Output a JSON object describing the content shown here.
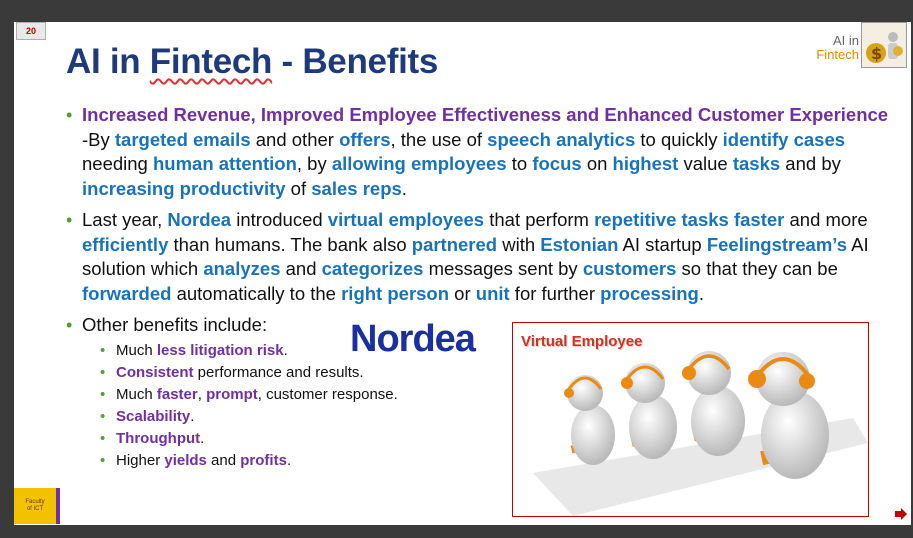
{
  "slide": {
    "page_number": "20",
    "title_prefix": "AI in ",
    "title_underlined": "Fintech",
    "title_suffix": " - Benefits",
    "logo_line1": "AI in",
    "logo_line2": "Fintech",
    "ict_logo_line1": "Faculty",
    "ict_logo_line2": "of ICT"
  },
  "bullets": {
    "b1": {
      "t1": "Increased Revenue, Improved Employee Effectiveness and Enhanced Customer Experience",
      "t2": " -By ",
      "t3": "targeted emails",
      "t4": " and other ",
      "t5": "offers",
      "t6": ", the use of ",
      "t7": "speech analytics",
      "t8": " to quickly ",
      "t9": "identify cases",
      "t10": " needing ",
      "t11": "human attention",
      "t12": ", by ",
      "t13": "allowing employees",
      "t14": " to ",
      "t15": "focus",
      "t16": " on ",
      "t17": "highest",
      "t18": " value ",
      "t19": "tasks",
      "t20": " and by ",
      "t21": "increasing productivity",
      "t22": " of ",
      "t23": "sales reps",
      "t24": "."
    },
    "b2": {
      "t1": "Last year, ",
      "t2": "Nordea",
      "t3": " introduced ",
      "t4": "virtual employees",
      "t5": " that perform ",
      "t6": "repetitive tasks faster",
      "t7": " and more ",
      "t8": "efficiently",
      "t9": " than humans. The bank also ",
      "t10": "partnered",
      "t11": " with ",
      "t12": "Estonian",
      "t13": " AI startup ",
      "t14": "Feelingstream’s",
      "t15": " AI solution which ",
      "t16": "analyzes",
      "t17": " and ",
      "t18": "categorizes",
      "t19": " messages sent by ",
      "t20": "customers",
      "t21": " so that they can be ",
      "t22": "forwarded",
      "t23": " automatically to the ",
      "t24": "right person",
      "t25": " or ",
      "t26": "unit",
      "t27": " for further ",
      "t28": "processing",
      "t29": "."
    },
    "b3": {
      "text": "Other benefits include:",
      "sub": [
        {
          "pre": "Much ",
          "hl": "less litigation risk",
          "post": "."
        },
        {
          "pre": "",
          "hl": "Consistent",
          "post": " performance and results."
        },
        {
          "pre": "Much ",
          "hl": "faster",
          "mid": ", ",
          "hl2": "prompt",
          "post": ", customer response."
        },
        {
          "pre": "",
          "hl": "Scalability",
          "post": "."
        },
        {
          "pre": "",
          "hl": "Throughput",
          "post": "."
        },
        {
          "pre": "Higher ",
          "hl": "yields",
          "mid": " and ",
          "hl2": "profits",
          "post": "."
        }
      ]
    }
  },
  "nordea_logo": "Nordea",
  "virtual_employee": {
    "label": "Virtual Employee"
  },
  "colors": {
    "title": "#1f3a7a",
    "purple": "#7030a0",
    "blue": "#1a73b8",
    "bullet": "#5a9a3a",
    "frame": "#c00000"
  },
  "icons": [
    "next-slide-arrow-icon",
    "fintech-logo-icon",
    "headset-figure-icon"
  ]
}
